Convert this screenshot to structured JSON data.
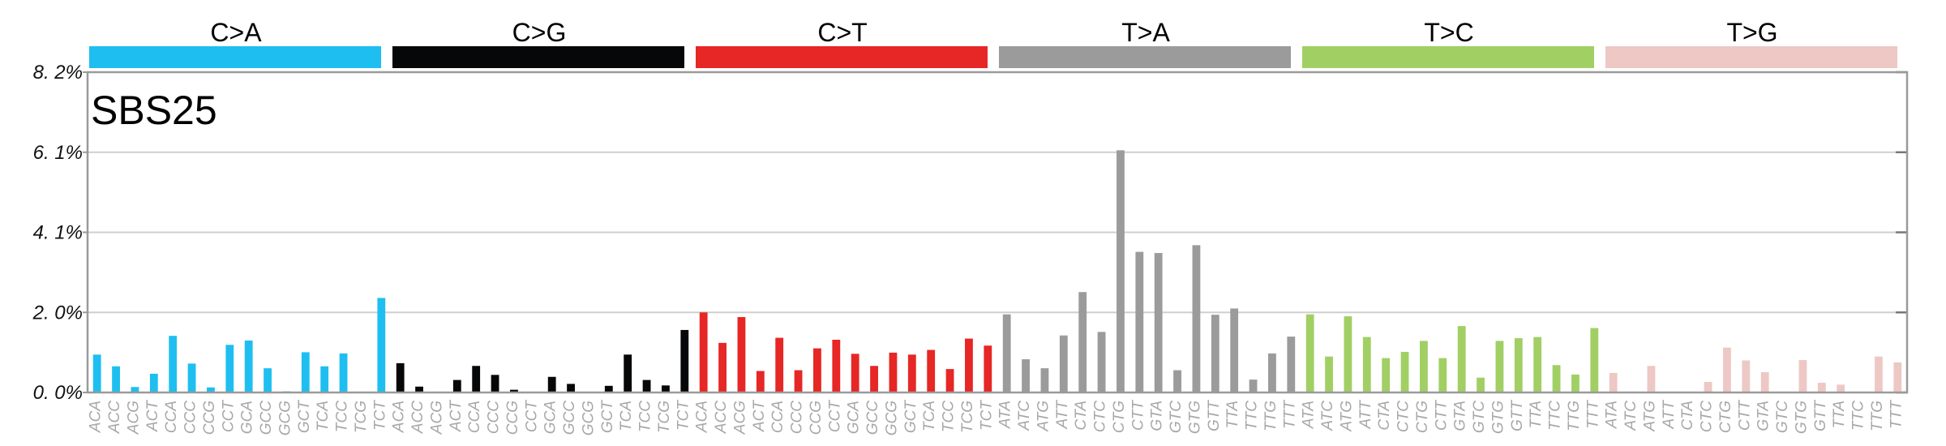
{
  "chart_data": {
    "type": "bar",
    "title": "SBS25",
    "ylim": [
      0,
      8.2
    ],
    "y_ticks": [
      "0. 0%",
      "2. 0%",
      "4. 1%",
      "6. 1%",
      "8. 2%"
    ],
    "y_tick_values": [
      0,
      2.05,
      4.1,
      6.15,
      8.2
    ],
    "grid": true,
    "groups": [
      {
        "name": "C>A",
        "color": "#1ebff0",
        "categories": [
          "ACA",
          "ACC",
          "ACG",
          "ACT",
          "CCA",
          "CCC",
          "CCG",
          "CCT",
          "GCA",
          "GCC",
          "GCG",
          "GCT",
          "TCA",
          "TCC",
          "TCG",
          "TCT"
        ],
        "values": [
          0.97,
          0.67,
          0.14,
          0.48,
          1.45,
          0.74,
          0.13,
          1.22,
          1.33,
          0.62,
          0.03,
          1.03,
          0.67,
          1.0,
          0.0,
          2.42
        ]
      },
      {
        "name": "C>G",
        "color": "#050708",
        "categories": [
          "ACA",
          "ACC",
          "ACG",
          "ACT",
          "CCA",
          "CCC",
          "CCG",
          "CCT",
          "GCA",
          "GCC",
          "GCG",
          "GCT",
          "TCA",
          "TCC",
          "TCG",
          "TCT"
        ],
        "values": [
          0.75,
          0.15,
          0.0,
          0.32,
          0.68,
          0.45,
          0.07,
          0.0,
          0.4,
          0.22,
          0.0,
          0.17,
          0.97,
          0.32,
          0.18,
          1.6
        ]
      },
      {
        "name": "C>T",
        "color": "#e62725",
        "categories": [
          "ACA",
          "ACC",
          "ACG",
          "ACT",
          "CCA",
          "CCC",
          "CCG",
          "CCT",
          "GCA",
          "GCC",
          "GCG",
          "GCT",
          "TCA",
          "TCC",
          "TCG",
          "TCT"
        ],
        "values": [
          2.05,
          1.27,
          1.93,
          0.55,
          1.4,
          0.57,
          1.13,
          1.35,
          0.99,
          0.68,
          1.02,
          0.97,
          1.09,
          0.6,
          1.38,
          1.2
        ]
      },
      {
        "name": "T>A",
        "color": "#9b9b9b",
        "categories": [
          "ATA",
          "ATC",
          "ATG",
          "ATT",
          "CTA",
          "CTC",
          "CTG",
          "CTT",
          "GTA",
          "GTC",
          "GTG",
          "GTT",
          "TTA",
          "TTC",
          "TTG",
          "TTT"
        ],
        "values": [
          2.0,
          0.85,
          0.62,
          1.46,
          2.57,
          1.55,
          6.2,
          3.6,
          3.57,
          0.57,
          3.77,
          1.99,
          2.15,
          0.33,
          1.0,
          1.43
        ]
      },
      {
        "name": "T>C",
        "color": "#a1cf64",
        "categories": [
          "ATA",
          "ATC",
          "ATG",
          "ATT",
          "CTA",
          "CTC",
          "CTG",
          "CTT",
          "GTA",
          "GTC",
          "GTG",
          "GTT",
          "TTA",
          "TTC",
          "TTG",
          "TTT"
        ],
        "values": [
          2.0,
          0.92,
          1.95,
          1.42,
          0.88,
          1.04,
          1.32,
          0.88,
          1.7,
          0.38,
          1.32,
          1.39,
          1.42,
          0.7,
          0.46,
          1.65
        ]
      },
      {
        "name": "T>G",
        "color": "#edc8c5",
        "categories": [
          "ATA",
          "ATC",
          "ATG",
          "ATT",
          "CTA",
          "CTC",
          "CTG",
          "CTT",
          "GTA",
          "GTC",
          "GTG",
          "GTT",
          "TTA",
          "TTC",
          "TTG",
          "TTT"
        ],
        "values": [
          0.5,
          0.0,
          0.68,
          0.0,
          0.0,
          0.27,
          1.15,
          0.82,
          0.52,
          0.0,
          0.83,
          0.25,
          0.2,
          0.0,
          0.92,
          0.77
        ]
      }
    ]
  }
}
